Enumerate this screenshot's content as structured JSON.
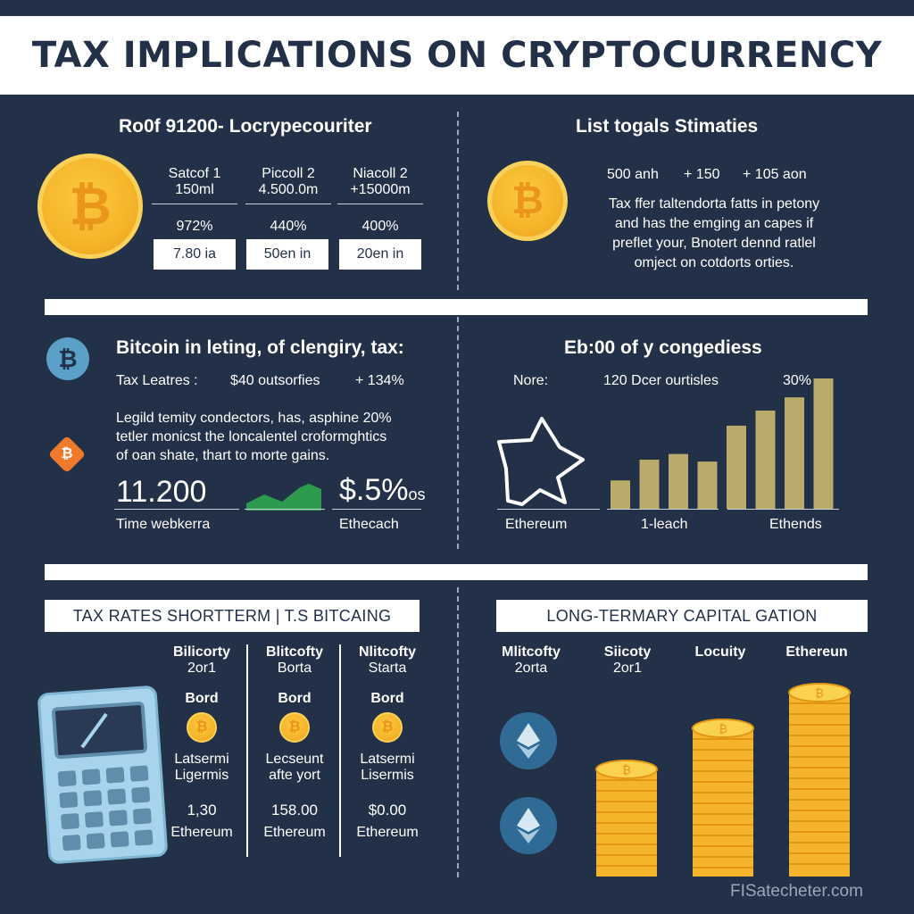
{
  "title": "TAX IMPLICATIONS ON CRYPTOCURRENCY",
  "top_left": {
    "heading": "Ro0f 91200- Locrypecouriter",
    "columns": [
      {
        "name": "Satcof 1",
        "sub": "150ml",
        "pct": "972%",
        "box": "7.80 ia"
      },
      {
        "name": "Piccoll 2",
        "sub": "4.500.0m",
        "pct": "440%",
        "box": "50en in"
      },
      {
        "name": "Niacoll 2",
        "sub": "+15000m",
        "pct": "400%",
        "box": "20en in"
      }
    ]
  },
  "top_right": {
    "heading": "List togals Stimaties",
    "stats": [
      "500 anh",
      "+ 150",
      "+ 105 aon"
    ],
    "body": [
      "Tax ffer taltendorta fatts in petony",
      "and has the emging an capes if",
      "preflet your, Bnotert dennd ratlel",
      "omject on cotdorts orties."
    ]
  },
  "mid_left": {
    "heading": "Bitcoin in leting, of clengiry, tax:",
    "stat_label": "Tax Leatres :",
    "stat_value": "$40 outsorfies",
    "stat_pct": "+ 134%",
    "body": [
      "Legild temity condectors, has, asphine 20%",
      "tetler monicst the loncalentel croformghtics",
      "of oan shate, thart to morte gains."
    ],
    "big_left": "11.200",
    "big_right": "$.5%",
    "big_right_suffix": "os",
    "label_left": "Time webkerra",
    "label_right": "Ethecach"
  },
  "mid_right": {
    "heading": "Eb:00 of y congediess",
    "row_label": "Nore:",
    "row_value": "120 Dcer ourtisles",
    "row_pct": "30%",
    "labels": [
      "Ethereum",
      "1-leach",
      "Ethends"
    ]
  },
  "chart_data": {
    "type": "bar",
    "categories": [
      "1",
      "2",
      "3",
      "4",
      "5",
      "6",
      "7",
      "8"
    ],
    "values": [
      30,
      52,
      58,
      50,
      88,
      104,
      118,
      138
    ]
  },
  "bottom_left": {
    "tab": "TAX RATES SHORTTERM | T.S BITCAING",
    "columns": [
      {
        "name": "Bilicorty",
        "sub": "2or1",
        "label": "Bord",
        "desc1": "Latsermi",
        "desc2": "Ligermis",
        "value": "1,30",
        "coin": "Ethereum"
      },
      {
        "name": "Blitcofty",
        "sub": "Borta",
        "label": "Bord",
        "desc1": "Lecseunt",
        "desc2": "afte yort",
        "value": "158.00",
        "coin": "Ethereum"
      },
      {
        "name": "Nlitcofty",
        "sub": "Starta",
        "label": "Bord",
        "desc1": "Latsermi",
        "desc2": "Lisermis",
        "value": "$0.00",
        "coin": "Ethereum"
      }
    ]
  },
  "bottom_right": {
    "tab": "LONG-TERMARY CAPITAL GATION",
    "columns": [
      {
        "name": "Mlitcofty",
        "sub": "2orta"
      },
      {
        "name": "Siicoty",
        "sub": "2or1"
      },
      {
        "name": "Locuity",
        "sub": ""
      },
      {
        "name": "Ethereun",
        "sub": ""
      }
    ]
  },
  "watermark": "FISatecheter.com",
  "colors": {
    "background": "#223048",
    "coin": "#f5b52a",
    "bar": "#b9ab6a",
    "accent_green": "#2e9a4d",
    "calculator": "#a7d4ec",
    "eth_circle": "#2f6b95",
    "bitcoin_blue": "#5aa0c8",
    "orange": "#f07a2b"
  },
  "icons": [
    "bitcoin-coin-icon",
    "bitcoin-badge-icon",
    "orange-diamond-icon",
    "star-arrow-icon",
    "calculator-icon",
    "ethereum-icon",
    "coin-stack-icon"
  ]
}
